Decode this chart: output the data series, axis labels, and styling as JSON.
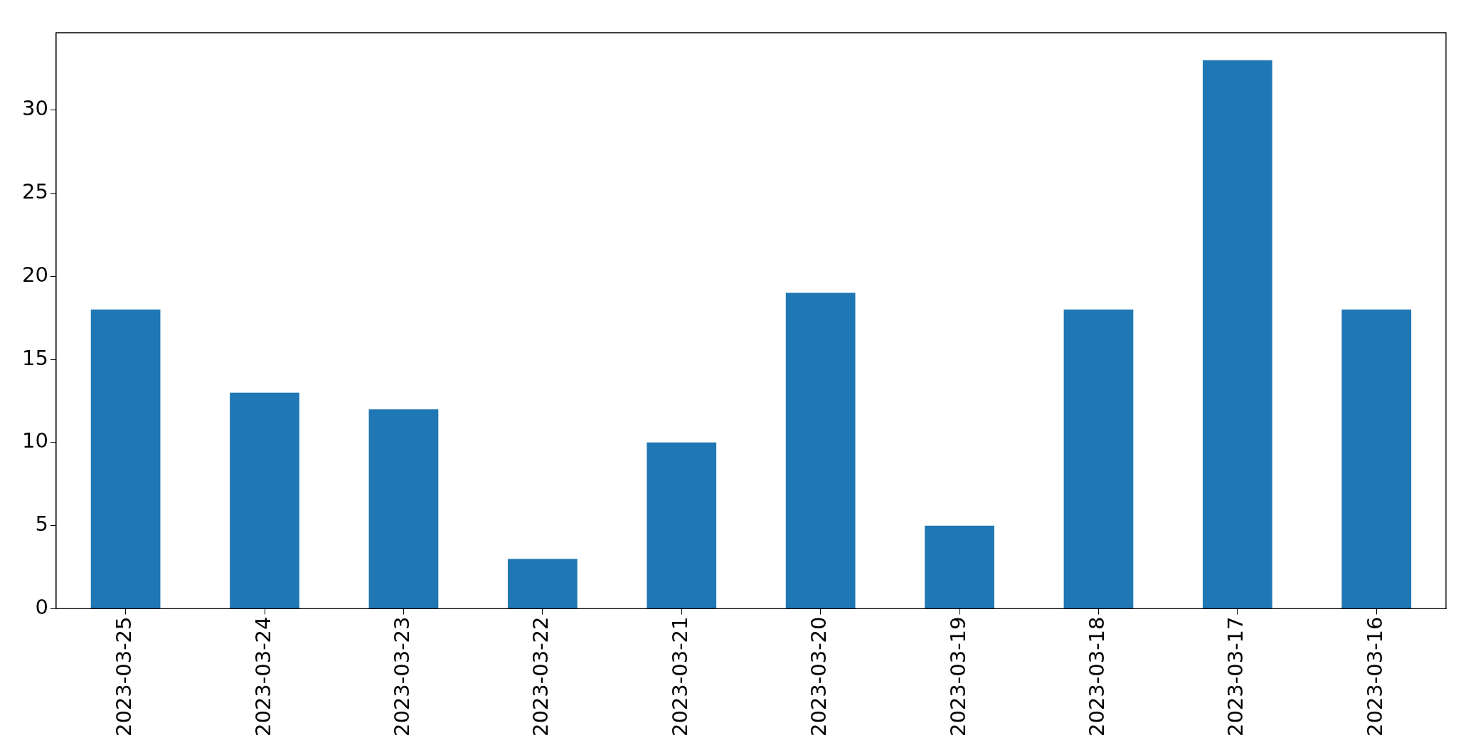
{
  "chart_data": {
    "type": "bar",
    "categories": [
      "2023-03-25",
      "2023-03-24",
      "2023-03-23",
      "2023-03-22",
      "2023-03-21",
      "2023-03-20",
      "2023-03-19",
      "2023-03-18",
      "2023-03-17",
      "2023-03-16"
    ],
    "values": [
      18,
      13,
      12,
      3,
      10,
      19,
      5,
      18,
      33,
      18
    ],
    "color": "#1f77b4",
    "ylim": [
      0,
      34.65
    ],
    "yticks": [
      0,
      5,
      10,
      15,
      20,
      25,
      30
    ]
  }
}
